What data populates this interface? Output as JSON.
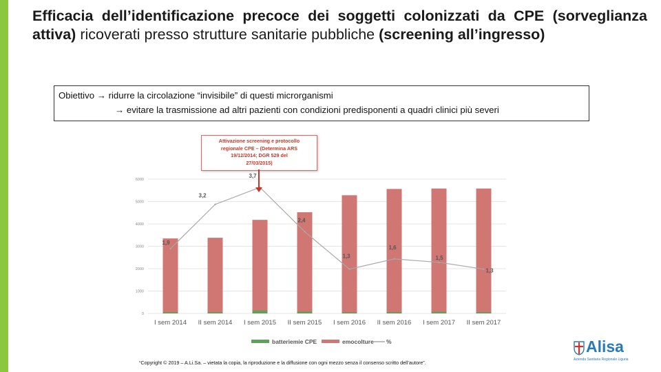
{
  "colors": {
    "accent": "#8dc63f",
    "bar_emo": "#d07673",
    "bar_batt": "#5fa05a",
    "line": "#a8a8a8",
    "grid": "#e4e4e4"
  },
  "title": {
    "part1": "Efficacia dell’identificazione precoce dei soggetti colonizzati da CPE (sorveglianza attiva) ",
    "part2": "ricoverati presso strutture sanitarie pubbliche",
    "part3": " (screening all’ingresso)"
  },
  "objective": {
    "label": "Obiettivo",
    "line1": "ridurre la circolazione “invisibile” di questi microrganismi",
    "line2": "evitare la trasmissione ad altri pazienti con condizioni predisponenti a quadri clinici più severi"
  },
  "callout": {
    "lines": [
      "Attivazione screening e protocollo",
      "regionale CPE – (Determina ARS",
      "19/12/2014; DGR 529 del",
      "27/03/2015)"
    ]
  },
  "chart_data": {
    "type": "bar",
    "categories": [
      "I sem 2014",
      "II sem 2014",
      "I sem 2015",
      "II sem 2015",
      "I sem 2016",
      "II sem 2016",
      "I sem 2017",
      "II sem 2017"
    ],
    "y_ticks": [
      "0",
      "1000",
      "2000",
      "3000",
      "4000",
      "5000",
      "6000"
    ],
    "ylim": [
      0,
      6000
    ],
    "series": [
      {
        "name": "batteriemie CPE",
        "kind": "bar",
        "values": [
          60,
          60,
          130,
          80,
          50,
          60,
          70,
          60
        ]
      },
      {
        "name": "emocolture",
        "kind": "bar",
        "values": [
          3350,
          3380,
          4180,
          4520,
          5280,
          5560,
          5580,
          5580
        ]
      },
      {
        "name": "%",
        "kind": "line",
        "values": [
          1.9,
          3.2,
          3.7,
          2.4,
          1.3,
          1.6,
          1.5,
          1.3
        ],
        "labels": [
          "1,9",
          "3,2",
          "3,7",
          "2,4",
          "1,3",
          "1,6",
          "1,5",
          "1,3"
        ]
      }
    ],
    "legend_position": "bottom"
  },
  "copyright": "“Copyright © 2019 – A.Li.Sa. – vietata la copia, la riproduzione e la diffusione con ogni mezzo senza il consenso scritto dell’autore”.",
  "logo": {
    "text": "Alisa",
    "subtitle": "Azienda Sanitaria Regionale Liguria"
  }
}
